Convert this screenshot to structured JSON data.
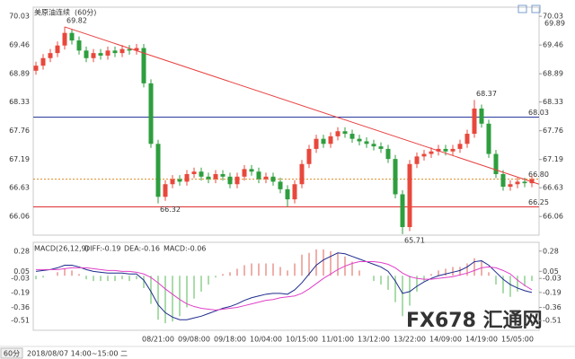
{
  "chart_data": [
    {
      "type": "candlestick",
      "title": "美原油连续",
      "period": "(60分)",
      "categories": [
        null,
        null,
        null,
        null,
        null,
        null,
        null,
        null,
        null,
        null,
        null,
        null,
        null,
        null,
        null,
        null,
        null,
        "08/21:00",
        null,
        null,
        null,
        null,
        "09/08:00",
        null,
        null,
        null,
        null,
        "09/18:00",
        null,
        null,
        null,
        null,
        "10/04:00",
        null,
        null,
        null,
        null,
        "10/15:00",
        null,
        null,
        null,
        null,
        "11/01:00",
        null,
        null,
        null,
        null,
        "13/12:00",
        null,
        null,
        null,
        null,
        "13/22:00",
        null,
        null,
        null,
        null,
        "14/09:00",
        null,
        null,
        null,
        null,
        "14/19:00",
        null,
        null,
        null,
        null,
        "15/05:00",
        null,
        null
      ],
      "open": [
        68.95,
        69.05,
        69.2,
        69.3,
        69.45,
        69.7,
        69.55,
        69.35,
        69.2,
        69.3,
        69.25,
        69.35,
        69.3,
        69.38,
        69.35,
        69.4,
        68.7,
        67.5,
        66.45,
        66.7,
        66.8,
        66.75,
        66.9,
        66.95,
        66.85,
        66.8,
        66.9,
        66.85,
        66.7,
        66.85,
        67.0,
        66.95,
        66.8,
        66.85,
        66.75,
        66.6,
        66.4,
        66.7,
        67.1,
        67.4,
        67.6,
        67.5,
        67.65,
        67.75,
        67.7,
        67.6,
        67.55,
        67.5,
        67.45,
        67.4,
        67.2,
        66.5,
        65.85,
        67.1,
        67.25,
        67.3,
        67.35,
        67.4,
        67.35,
        67.4,
        67.5,
        67.7,
        68.2,
        67.9,
        67.3,
        66.9,
        66.65,
        66.7,
        66.75,
        66.72
      ],
      "high": [
        69.13,
        69.28,
        69.38,
        69.53,
        69.82,
        69.78,
        69.63,
        69.43,
        69.38,
        69.38,
        69.43,
        69.43,
        69.46,
        69.46,
        69.48,
        69.48,
        68.78,
        67.58,
        66.78,
        66.88,
        66.88,
        66.98,
        67.03,
        67.03,
        66.93,
        66.98,
        66.98,
        66.93,
        66.93,
        67.08,
        67.08,
        67.03,
        66.93,
        66.93,
        66.83,
        66.68,
        66.78,
        67.18,
        67.48,
        67.68,
        67.68,
        67.73,
        67.83,
        67.83,
        67.78,
        67.68,
        67.63,
        67.58,
        67.53,
        67.48,
        67.28,
        66.58,
        67.18,
        67.33,
        67.38,
        67.43,
        67.48,
        67.48,
        67.48,
        67.58,
        67.78,
        68.37,
        68.28,
        67.98,
        67.38,
        66.98,
        66.78,
        66.83,
        66.83,
        66.88
      ],
      "low": [
        68.87,
        68.97,
        69.12,
        69.22,
        69.37,
        69.47,
        69.27,
        69.12,
        69.12,
        69.17,
        69.17,
        69.22,
        69.22,
        69.27,
        69.27,
        68.62,
        67.42,
        66.32,
        66.37,
        66.62,
        66.67,
        66.67,
        66.82,
        66.77,
        66.72,
        66.72,
        66.77,
        66.62,
        66.62,
        66.77,
        66.87,
        66.72,
        66.72,
        66.67,
        66.52,
        66.25,
        66.32,
        66.62,
        67.02,
        67.32,
        67.42,
        67.42,
        67.57,
        67.62,
        67.52,
        67.47,
        67.42,
        67.37,
        67.32,
        67.12,
        66.42,
        65.71,
        65.77,
        67.02,
        67.17,
        67.22,
        67.27,
        67.27,
        67.27,
        67.32,
        67.42,
        67.62,
        67.82,
        67.22,
        66.82,
        66.57,
        66.57,
        66.62,
        66.64,
        66.64
      ],
      "close": [
        69.05,
        69.2,
        69.3,
        69.45,
        69.7,
        69.55,
        69.35,
        69.2,
        69.3,
        69.25,
        69.35,
        69.3,
        69.38,
        69.35,
        69.4,
        68.7,
        67.5,
        66.45,
        66.7,
        66.8,
        66.75,
        66.9,
        66.95,
        66.85,
        66.8,
        66.9,
        66.85,
        66.7,
        66.85,
        67.0,
        66.95,
        66.8,
        66.85,
        66.75,
        66.6,
        66.4,
        66.7,
        67.1,
        67.4,
        67.6,
        67.5,
        67.65,
        67.75,
        67.7,
        67.6,
        67.55,
        67.5,
        67.45,
        67.4,
        67.2,
        66.5,
        65.85,
        67.1,
        67.25,
        67.3,
        67.35,
        67.4,
        67.35,
        67.4,
        67.5,
        67.7,
        68.2,
        67.9,
        67.3,
        66.9,
        66.65,
        66.7,
        66.75,
        66.72,
        66.8
      ],
      "colors": {
        "up": "#e8483c",
        "down": "#2e9e3e"
      },
      "ylim": [
        65.69,
        70.21
      ],
      "yticks": [
        70.03,
        69.46,
        68.89,
        68.33,
        67.76,
        67.19,
        66.63,
        66.06
      ],
      "top_label": 69.89,
      "hlines": [
        {
          "value": 68.03,
          "color": "#2b3a9a"
        },
        {
          "value": 66.25,
          "color": "#e03030"
        },
        {
          "value": 66.8,
          "label": "66.80",
          "color": "#e08a20"
        }
      ],
      "trendline": {
        "values": [
          69.82,
          66.7
        ],
        "color": "#e84040"
      },
      "footer": {
        "button": "60分",
        "info": "2018/08/07 14:00~15:00 二"
      },
      "watermark": "FX678 汇通网"
    },
    {
      "type": "macd",
      "title": "MACD(26,12,9)",
      "series": [
        {
          "name": "DIFF:-0.19",
          "color": "#1c2a8c",
          "values": [
            0.05,
            0.06,
            0.07,
            0.09,
            0.12,
            0.12,
            0.1,
            0.07,
            0.05,
            0.04,
            0.03,
            0.03,
            0.03,
            0.02,
            0.02,
            -0.05,
            -0.18,
            -0.33,
            -0.42,
            -0.47,
            -0.5,
            -0.5,
            -0.48,
            -0.46,
            -0.43,
            -0.4,
            -0.37,
            -0.35,
            -0.32,
            -0.28,
            -0.25,
            -0.23,
            -0.21,
            -0.2,
            -0.2,
            -0.21,
            -0.16,
            -0.08,
            0.02,
            0.12,
            0.18,
            0.22,
            0.26,
            0.25,
            0.22,
            0.19,
            0.16,
            0.13,
            0.1,
            0.05,
            -0.06,
            -0.2,
            -0.18,
            -0.12,
            -0.07,
            -0.03,
            0.0,
            0.02,
            0.04,
            0.06,
            0.1,
            0.16,
            0.17,
            0.12,
            0.04,
            -0.04,
            -0.1,
            -0.14,
            -0.17,
            -0.19
          ]
        },
        {
          "name": "DEA:-0.16",
          "color": "#e040c8",
          "values": [
            0.07,
            0.07,
            0.07,
            0.07,
            0.08,
            0.09,
            0.09,
            0.09,
            0.08,
            0.07,
            0.06,
            0.06,
            0.05,
            0.05,
            0.04,
            0.02,
            -0.02,
            -0.08,
            -0.15,
            -0.21,
            -0.27,
            -0.32,
            -0.35,
            -0.37,
            -0.38,
            -0.39,
            -0.38,
            -0.37,
            -0.36,
            -0.34,
            -0.32,
            -0.3,
            -0.28,
            -0.27,
            -0.25,
            -0.24,
            -0.23,
            -0.2,
            -0.15,
            -0.09,
            -0.03,
            0.02,
            0.07,
            0.11,
            0.14,
            0.16,
            0.16,
            0.16,
            0.15,
            0.13,
            0.09,
            0.03,
            -0.01,
            -0.03,
            -0.04,
            -0.04,
            -0.03,
            -0.02,
            -0.01,
            0.01,
            0.03,
            0.06,
            0.09,
            0.1,
            0.09,
            0.06,
            0.02,
            -0.05,
            -0.11,
            -0.16
          ]
        }
      ],
      "histogram": {
        "name": "MACD:-0.06",
        "colors": {
          "up": "#e8958f",
          "down": "#8fd08f"
        },
        "values": [
          -0.04,
          -0.02,
          0.0,
          0.04,
          0.08,
          0.06,
          0.02,
          -0.04,
          -0.06,
          -0.06,
          -0.06,
          -0.06,
          -0.04,
          -0.06,
          -0.04,
          -0.14,
          -0.32,
          -0.5,
          -0.54,
          -0.52,
          -0.46,
          -0.36,
          -0.26,
          -0.18,
          -0.1,
          -0.02,
          0.02,
          0.04,
          0.08,
          0.12,
          0.14,
          0.14,
          0.14,
          0.14,
          0.1,
          0.06,
          0.14,
          0.24,
          0.26,
          0.3,
          0.3,
          0.28,
          0.26,
          0.22,
          0.16,
          0.06,
          0.0,
          -0.06,
          -0.1,
          -0.16,
          -0.3,
          -0.46,
          -0.34,
          -0.18,
          -0.06,
          0.02,
          0.06,
          0.08,
          0.1,
          0.1,
          0.14,
          0.2,
          0.16,
          0.04,
          -0.1,
          -0.2,
          -0.24,
          -0.18,
          -0.12,
          -0.06
        ]
      },
      "ylim": [
        -0.62,
        0.38
      ],
      "yticks": [
        0.28,
        0.05,
        -0.03,
        -0.19,
        -0.36,
        -0.51
      ]
    }
  ]
}
